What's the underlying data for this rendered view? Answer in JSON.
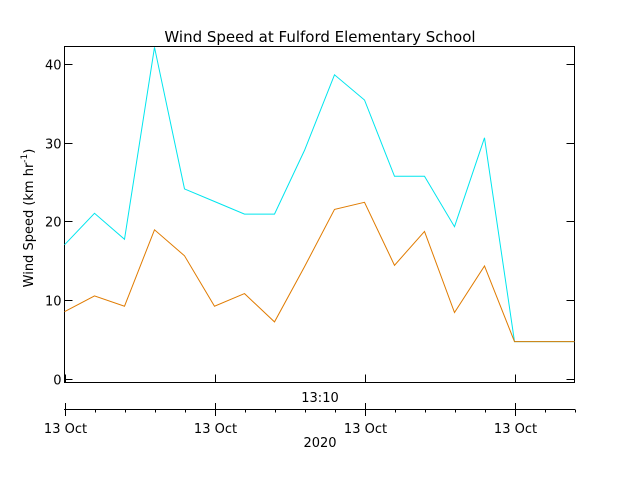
{
  "chart_data": {
    "type": "line",
    "title": "Wind Speed at Fulford Elementary School",
    "ylabel": "Wind Speed (km hr",
    "ylabel_superscript": "-1",
    "ylabel_suffix": ")",
    "ylim": [
      -0.5,
      42.2
    ],
    "yticks": [
      0,
      10,
      20,
      30,
      40
    ],
    "ytick_labels": [
      "0",
      "10",
      "20",
      "30",
      "40"
    ],
    "xlim": [
      0,
      17
    ],
    "x": [
      0,
      1,
      2,
      3,
      4,
      5,
      6,
      7,
      8,
      9,
      10,
      11,
      12,
      13,
      14,
      15,
      16,
      17
    ],
    "time_label": "13:10",
    "xticks": [
      0,
      5,
      10,
      15
    ],
    "xtick_labels": [
      "13 Oct",
      "13 Oct",
      "13 Oct",
      "13 Oct"
    ],
    "year_label": "2020",
    "grid": false,
    "series": [
      {
        "color": "#00e5ee",
        "values": [
          17.0,
          21.0,
          17.7,
          42.1,
          24.1,
          22.5,
          20.9,
          20.9,
          29.0,
          38.6,
          35.4,
          25.7,
          25.7,
          19.3,
          30.6,
          4.7,
          4.7,
          4.7
        ]
      },
      {
        "color": "#e07b00",
        "values": [
          8.5,
          10.5,
          9.2,
          18.9,
          15.6,
          9.2,
          10.8,
          7.2,
          14.2,
          21.5,
          22.4,
          14.4,
          18.7,
          8.4,
          14.3,
          4.7,
          4.7,
          4.7
        ]
      }
    ]
  }
}
